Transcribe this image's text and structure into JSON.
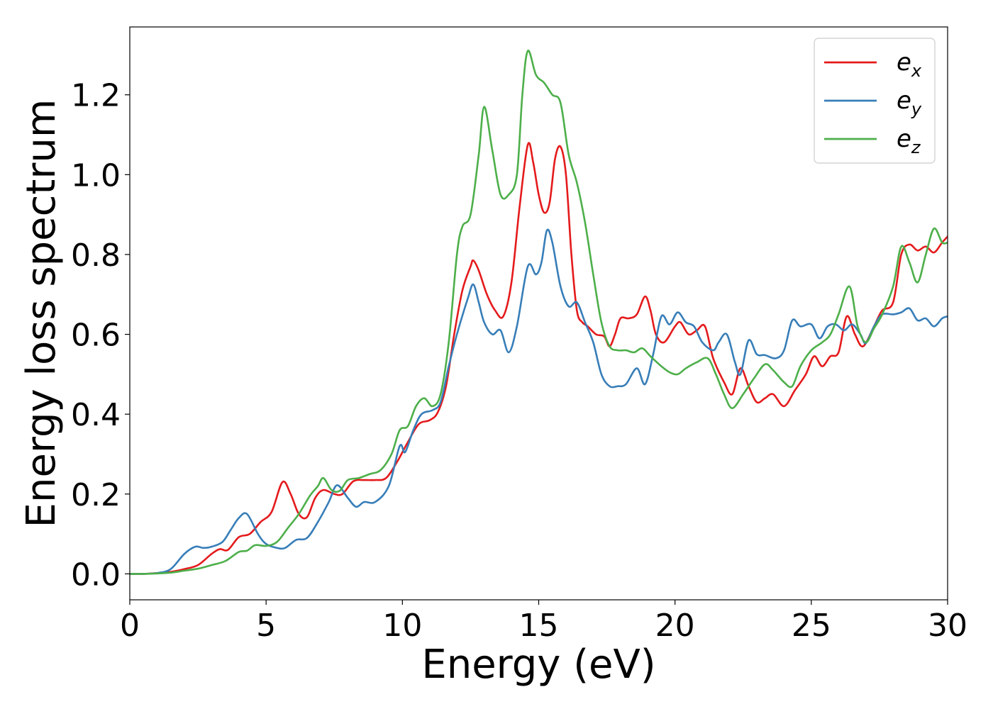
{
  "chart_data": {
    "type": "line",
    "title": "",
    "xlabel": "Energy (eV)",
    "ylabel": "Energy loss spectrum",
    "xlim": [
      0,
      30
    ],
    "ylim": [
      -0.065,
      1.37
    ],
    "xticks": [
      0,
      5,
      10,
      15,
      20,
      25,
      30
    ],
    "xtick_labels": [
      "0",
      "5",
      "10",
      "15",
      "20",
      "25",
      "30"
    ],
    "yticks": [
      0.0,
      0.2,
      0.4,
      0.6,
      0.8,
      1.0,
      1.2
    ],
    "ytick_labels": [
      "0.0",
      "0.2",
      "0.4",
      "0.6",
      "0.8",
      "1.0",
      "1.2"
    ],
    "grid": false,
    "legend_position": "top-right",
    "series": [
      {
        "name": "e_x",
        "base": "e",
        "sub": "x",
        "color": "#e41a1c",
        "points": [
          [
            0,
            0
          ],
          [
            0.5,
            0
          ],
          [
            1,
            0.002
          ],
          [
            1.5,
            0.005
          ],
          [
            2,
            0.012
          ],
          [
            2.5,
            0.022
          ],
          [
            3,
            0.05
          ],
          [
            3.3,
            0.062
          ],
          [
            3.6,
            0.06
          ],
          [
            4,
            0.092
          ],
          [
            4.4,
            0.1
          ],
          [
            4.8,
            0.13
          ],
          [
            5.2,
            0.155
          ],
          [
            5.6,
            0.23
          ],
          [
            5.9,
            0.2
          ],
          [
            6.2,
            0.15
          ],
          [
            6.5,
            0.142
          ],
          [
            6.8,
            0.19
          ],
          [
            7.1,
            0.21
          ],
          [
            7.5,
            0.2
          ],
          [
            7.8,
            0.2
          ],
          [
            8.2,
            0.232
          ],
          [
            8.6,
            0.235
          ],
          [
            9,
            0.235
          ],
          [
            9.4,
            0.24
          ],
          [
            9.8,
            0.28
          ],
          [
            10.2,
            0.33
          ],
          [
            10.6,
            0.375
          ],
          [
            11,
            0.385
          ],
          [
            11.3,
            0.405
          ],
          [
            11.6,
            0.47
          ],
          [
            11.9,
            0.6
          ],
          [
            12.2,
            0.71
          ],
          [
            12.5,
            0.77
          ],
          [
            12.6,
            0.785
          ],
          [
            12.8,
            0.76
          ],
          [
            13.1,
            0.7
          ],
          [
            13.4,
            0.66
          ],
          [
            13.7,
            0.645
          ],
          [
            14,
            0.73
          ],
          [
            14.3,
            0.92
          ],
          [
            14.6,
            1.075
          ],
          [
            14.8,
            1.03
          ],
          [
            15.0,
            0.95
          ],
          [
            15.2,
            0.905
          ],
          [
            15.4,
            0.93
          ],
          [
            15.6,
            1.04
          ],
          [
            15.8,
            1.07
          ],
          [
            16.0,
            1.0
          ],
          [
            16.2,
            0.8
          ],
          [
            16.4,
            0.66
          ],
          [
            16.6,
            0.63
          ],
          [
            16.8,
            0.62
          ],
          [
            17.1,
            0.6
          ],
          [
            17.4,
            0.595
          ],
          [
            17.6,
            0.57
          ],
          [
            17.8,
            0.6
          ],
          [
            18.0,
            0.64
          ],
          [
            18.3,
            0.64
          ],
          [
            18.6,
            0.65
          ],
          [
            18.9,
            0.695
          ],
          [
            19.1,
            0.66
          ],
          [
            19.3,
            0.6
          ],
          [
            19.6,
            0.58
          ],
          [
            20.0,
            0.62
          ],
          [
            20.2,
            0.63
          ],
          [
            20.5,
            0.6
          ],
          [
            20.8,
            0.61
          ],
          [
            21.1,
            0.62
          ],
          [
            21.4,
            0.54
          ],
          [
            21.8,
            0.48
          ],
          [
            22.1,
            0.45
          ],
          [
            22.4,
            0.515
          ],
          [
            22.7,
            0.47
          ],
          [
            23.0,
            0.43
          ],
          [
            23.3,
            0.44
          ],
          [
            23.6,
            0.45
          ],
          [
            24.0,
            0.42
          ],
          [
            24.4,
            0.46
          ],
          [
            24.8,
            0.5
          ],
          [
            25.1,
            0.545
          ],
          [
            25.4,
            0.52
          ],
          [
            25.7,
            0.545
          ],
          [
            26.0,
            0.555
          ],
          [
            26.3,
            0.645
          ],
          [
            26.6,
            0.6
          ],
          [
            26.9,
            0.57
          ],
          [
            27.3,
            0.62
          ],
          [
            27.6,
            0.66
          ],
          [
            28.0,
            0.68
          ],
          [
            28.3,
            0.8
          ],
          [
            28.6,
            0.825
          ],
          [
            28.9,
            0.81
          ],
          [
            29.2,
            0.82
          ],
          [
            29.5,
            0.805
          ],
          [
            29.8,
            0.83
          ],
          [
            30,
            0.845
          ]
        ]
      },
      {
        "name": "e_y",
        "base": "e",
        "sub": "y",
        "color": "#377eb8",
        "points": [
          [
            0,
            0
          ],
          [
            0.5,
            0
          ],
          [
            1,
            0.002
          ],
          [
            1.5,
            0.012
          ],
          [
            2,
            0.05
          ],
          [
            2.4,
            0.068
          ],
          [
            2.7,
            0.065
          ],
          [
            3,
            0.068
          ],
          [
            3.4,
            0.08
          ],
          [
            3.7,
            0.11
          ],
          [
            4,
            0.14
          ],
          [
            4.3,
            0.15
          ],
          [
            4.7,
            0.1
          ],
          [
            5.0,
            0.075
          ],
          [
            5.4,
            0.065
          ],
          [
            5.7,
            0.065
          ],
          [
            6.1,
            0.085
          ],
          [
            6.5,
            0.09
          ],
          [
            6.9,
            0.13
          ],
          [
            7.3,
            0.18
          ],
          [
            7.6,
            0.222
          ],
          [
            8.0,
            0.19
          ],
          [
            8.3,
            0.168
          ],
          [
            8.6,
            0.18
          ],
          [
            9.0,
            0.18
          ],
          [
            9.5,
            0.22
          ],
          [
            9.9,
            0.32
          ],
          [
            10.1,
            0.305
          ],
          [
            10.4,
            0.36
          ],
          [
            10.7,
            0.4
          ],
          [
            11.1,
            0.41
          ],
          [
            11.4,
            0.43
          ],
          [
            11.7,
            0.52
          ],
          [
            12.0,
            0.6
          ],
          [
            12.4,
            0.69
          ],
          [
            12.6,
            0.725
          ],
          [
            12.8,
            0.68
          ],
          [
            13.0,
            0.63
          ],
          [
            13.3,
            0.6
          ],
          [
            13.6,
            0.61
          ],
          [
            13.9,
            0.555
          ],
          [
            14.2,
            0.62
          ],
          [
            14.6,
            0.77
          ],
          [
            14.9,
            0.75
          ],
          [
            15.1,
            0.78
          ],
          [
            15.3,
            0.86
          ],
          [
            15.5,
            0.83
          ],
          [
            15.8,
            0.72
          ],
          [
            16.1,
            0.67
          ],
          [
            16.4,
            0.68
          ],
          [
            16.7,
            0.63
          ],
          [
            17.0,
            0.58
          ],
          [
            17.3,
            0.5
          ],
          [
            17.6,
            0.47
          ],
          [
            17.9,
            0.47
          ],
          [
            18.2,
            0.475
          ],
          [
            18.6,
            0.515
          ],
          [
            18.9,
            0.475
          ],
          [
            19.2,
            0.55
          ],
          [
            19.5,
            0.645
          ],
          [
            19.8,
            0.625
          ],
          [
            20.1,
            0.655
          ],
          [
            20.4,
            0.63
          ],
          [
            20.7,
            0.62
          ],
          [
            21.0,
            0.58
          ],
          [
            21.4,
            0.56
          ],
          [
            21.6,
            0.58
          ],
          [
            21.9,
            0.6
          ],
          [
            22.2,
            0.53
          ],
          [
            22.4,
            0.5
          ],
          [
            22.7,
            0.585
          ],
          [
            23.0,
            0.55
          ],
          [
            23.3,
            0.548
          ],
          [
            23.7,
            0.54
          ],
          [
            24.0,
            0.56
          ],
          [
            24.3,
            0.635
          ],
          [
            24.6,
            0.62
          ],
          [
            25.0,
            0.625
          ],
          [
            25.3,
            0.59
          ],
          [
            25.6,
            0.62
          ],
          [
            25.9,
            0.625
          ],
          [
            26.2,
            0.61
          ],
          [
            26.5,
            0.625
          ],
          [
            26.8,
            0.6
          ],
          [
            27.0,
            0.578
          ],
          [
            27.3,
            0.62
          ],
          [
            27.6,
            0.65
          ],
          [
            28.0,
            0.65
          ],
          [
            28.3,
            0.655
          ],
          [
            28.6,
            0.665
          ],
          [
            28.9,
            0.635
          ],
          [
            29.2,
            0.64
          ],
          [
            29.5,
            0.62
          ],
          [
            29.8,
            0.64
          ],
          [
            30,
            0.645
          ]
        ]
      },
      {
        "name": "e_z",
        "base": "e",
        "sub": "z",
        "color": "#4daf4a",
        "points": [
          [
            0,
            0
          ],
          [
            0.5,
            0
          ],
          [
            1,
            0.001
          ],
          [
            1.5,
            0.003
          ],
          [
            2,
            0.008
          ],
          [
            2.5,
            0.013
          ],
          [
            3,
            0.022
          ],
          [
            3.5,
            0.032
          ],
          [
            4,
            0.055
          ],
          [
            4.3,
            0.058
          ],
          [
            4.6,
            0.072
          ],
          [
            5.0,
            0.07
          ],
          [
            5.4,
            0.08
          ],
          [
            5.8,
            0.115
          ],
          [
            6.2,
            0.15
          ],
          [
            6.6,
            0.195
          ],
          [
            6.9,
            0.22
          ],
          [
            7.1,
            0.24
          ],
          [
            7.4,
            0.21
          ],
          [
            7.7,
            0.208
          ],
          [
            8.0,
            0.235
          ],
          [
            8.4,
            0.24
          ],
          [
            8.8,
            0.25
          ],
          [
            9.2,
            0.26
          ],
          [
            9.6,
            0.3
          ],
          [
            9.9,
            0.36
          ],
          [
            10.2,
            0.37
          ],
          [
            10.5,
            0.42
          ],
          [
            10.8,
            0.44
          ],
          [
            11.1,
            0.42
          ],
          [
            11.4,
            0.45
          ],
          [
            11.7,
            0.58
          ],
          [
            12.0,
            0.8
          ],
          [
            12.2,
            0.87
          ],
          [
            12.5,
            0.9
          ],
          [
            12.8,
            1.05
          ],
          [
            13.0,
            1.17
          ],
          [
            13.3,
            1.06
          ],
          [
            13.6,
            0.95
          ],
          [
            13.9,
            0.95
          ],
          [
            14.2,
            1.0
          ],
          [
            14.4,
            1.2
          ],
          [
            14.6,
            1.31
          ],
          [
            14.9,
            1.25
          ],
          [
            15.2,
            1.23
          ],
          [
            15.5,
            1.2
          ],
          [
            15.8,
            1.18
          ],
          [
            16.1,
            1.05
          ],
          [
            16.4,
            0.98
          ],
          [
            16.7,
            0.88
          ],
          [
            17.0,
            0.75
          ],
          [
            17.3,
            0.63
          ],
          [
            17.6,
            0.57
          ],
          [
            17.9,
            0.56
          ],
          [
            18.2,
            0.56
          ],
          [
            18.5,
            0.555
          ],
          [
            18.8,
            0.565
          ],
          [
            19.1,
            0.545
          ],
          [
            19.5,
            0.52
          ],
          [
            19.8,
            0.505
          ],
          [
            20.1,
            0.5
          ],
          [
            20.4,
            0.515
          ],
          [
            20.8,
            0.53
          ],
          [
            21.2,
            0.54
          ],
          [
            21.5,
            0.5
          ],
          [
            21.8,
            0.45
          ],
          [
            22.1,
            0.415
          ],
          [
            22.5,
            0.45
          ],
          [
            22.9,
            0.49
          ],
          [
            23.3,
            0.525
          ],
          [
            23.6,
            0.51
          ],
          [
            24.0,
            0.48
          ],
          [
            24.3,
            0.47
          ],
          [
            24.6,
            0.52
          ],
          [
            25.0,
            0.56
          ],
          [
            25.4,
            0.58
          ],
          [
            25.7,
            0.6
          ],
          [
            26.0,
            0.65
          ],
          [
            26.4,
            0.72
          ],
          [
            26.7,
            0.62
          ],
          [
            27.0,
            0.58
          ],
          [
            27.3,
            0.615
          ],
          [
            27.6,
            0.65
          ],
          [
            28.0,
            0.72
          ],
          [
            28.3,
            0.82
          ],
          [
            28.6,
            0.78
          ],
          [
            28.9,
            0.73
          ],
          [
            29.2,
            0.8
          ],
          [
            29.5,
            0.865
          ],
          [
            29.8,
            0.83
          ],
          [
            30,
            0.83
          ]
        ]
      }
    ]
  }
}
